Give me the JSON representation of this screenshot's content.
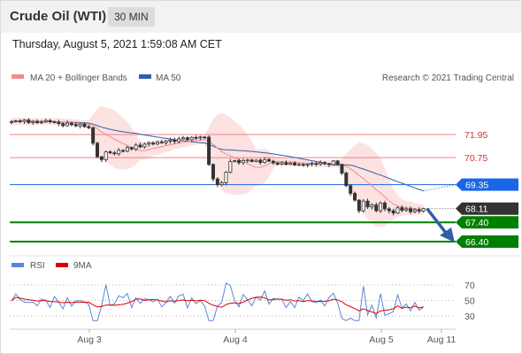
{
  "header": {
    "title": "Crude Oil (WTI)",
    "timeframe": "30 MIN"
  },
  "timestamp": "Thursday, August 5, 2021 1:59:08 AM CET",
  "legend": {
    "ma20_label": "MA 20 + Bollinger Bands",
    "ma50_label": "MA 50",
    "copyright": "Research © 2021 Trading Central",
    "rsi_label": "RSI",
    "rsi_ma_label": "9MA"
  },
  "colors": {
    "ma20": "#f08c8c",
    "ma50": "#2f5faa",
    "resistance": "#f08080",
    "support": "#008000",
    "pivot": "#1a66e6",
    "price_box": "#333333",
    "bull_candle": "#ffffff",
    "bear_candle": "#333333",
    "rsi": "#5b86d8",
    "rsi_ma": "#dd0000"
  },
  "chart_data": [
    {
      "type": "candlestick",
      "ylim": [
        65.6,
        73.3
      ],
      "xticks": [
        "Aug 3",
        "Aug 4",
        "Aug 5",
        "Aug 11"
      ],
      "levels": [
        {
          "value": 71.95,
          "label": "71.95",
          "kind": "resistance"
        },
        {
          "value": 70.75,
          "label": "70.75",
          "kind": "resistance"
        },
        {
          "value": 69.35,
          "label": "69.35",
          "kind": "pivot"
        },
        {
          "value": 68.11,
          "label": "68.11",
          "kind": "last_price"
        },
        {
          "value": 67.4,
          "label": "67.40",
          "kind": "support"
        },
        {
          "value": 66.4,
          "label": "66.40",
          "kind": "support"
        }
      ],
      "close": [
        72.62,
        72.66,
        72.63,
        72.7,
        72.57,
        72.63,
        72.56,
        72.6,
        72.67,
        72.61,
        72.58,
        72.52,
        72.41,
        72.54,
        72.47,
        72.4,
        72.49,
        72.36,
        72.3,
        71.5,
        70.8,
        70.65,
        71.05,
        71.0,
        70.95,
        71.13,
        71.08,
        71.28,
        71.2,
        71.4,
        71.31,
        71.45,
        71.51,
        71.46,
        71.56,
        71.52,
        71.61,
        71.66,
        71.59,
        71.72,
        71.78,
        71.68,
        71.8,
        71.79,
        71.82,
        71.81,
        70.4,
        69.65,
        69.35,
        69.45,
        70.0,
        70.55,
        70.6,
        70.49,
        70.6,
        70.63,
        70.55,
        70.62,
        70.5,
        70.65,
        70.57,
        70.48,
        70.41,
        70.49,
        70.4,
        70.47,
        70.37,
        70.4,
        70.36,
        70.41,
        70.45,
        70.43,
        70.5,
        70.44,
        70.39,
        70.58,
        70.4,
        69.95,
        69.3,
        68.9,
        68.55,
        68.0,
        68.5,
        68.2,
        68.3,
        68.0,
        68.4,
        68.1,
        68.0,
        67.88,
        68.15,
        68.02,
        68.1,
        67.95,
        68.05,
        67.98,
        68.11
      ],
      "rsi_ylim": [
        20,
        80
      ],
      "rsi_ticks": [
        70,
        50,
        30
      ]
    }
  ]
}
